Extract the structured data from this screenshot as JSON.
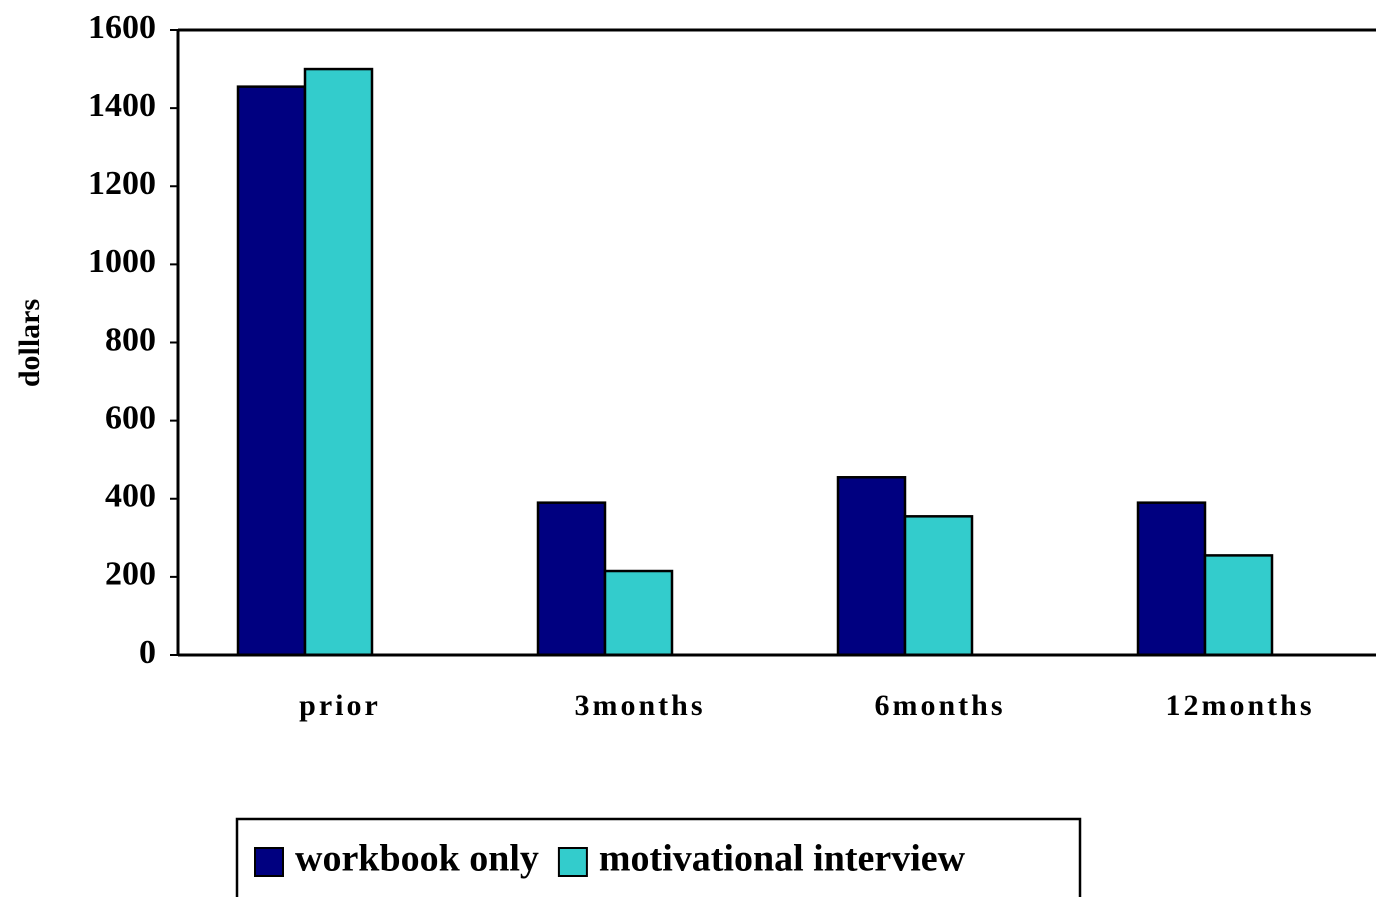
{
  "chart_data": {
    "type": "bar",
    "y_axis_label": "dollars",
    "categories": [
      "prior",
      "3months",
      "6months",
      "12months"
    ],
    "series": [
      {
        "name": "workbook only",
        "color": "#000080",
        "values": [
          1455,
          390,
          455,
          390
        ]
      },
      {
        "name": "motivational interview",
        "color": "#33cccc",
        "values": [
          1500,
          215,
          355,
          255
        ]
      }
    ],
    "ylim": [
      0,
      1600
    ],
    "yticks": [
      0,
      200,
      400,
      600,
      800,
      1000,
      1200,
      1400,
      1600
    ],
    "legend": "bottom"
  }
}
